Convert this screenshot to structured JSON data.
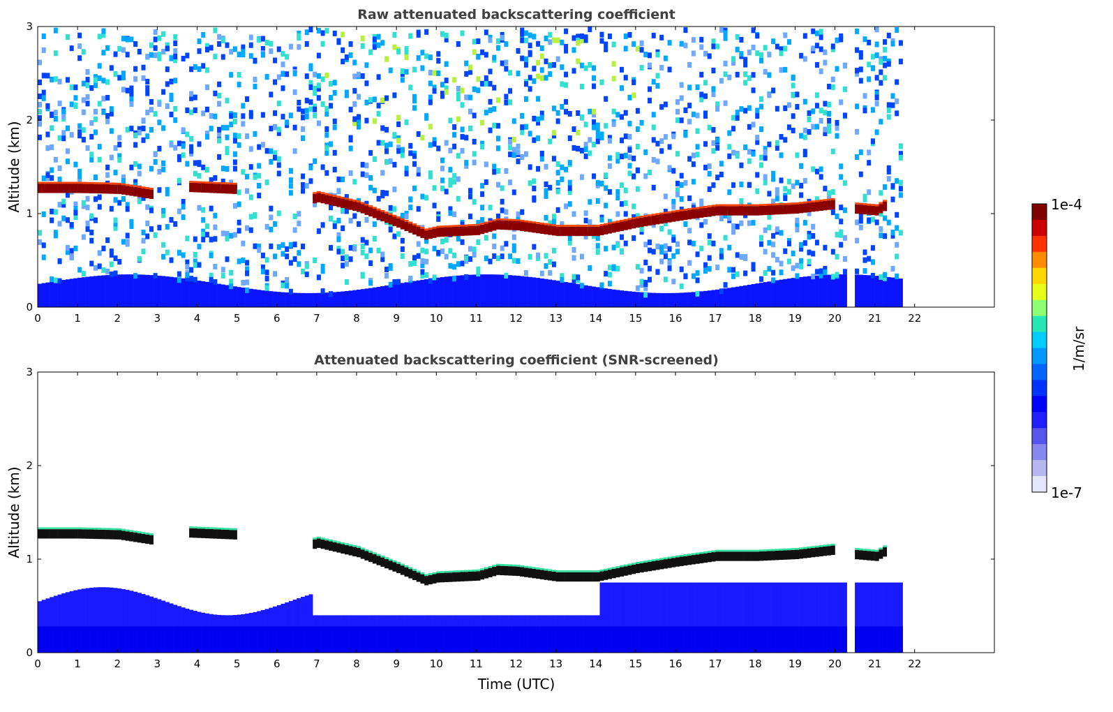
{
  "chart_data": [
    {
      "type": "heatmap",
      "title": "Raw attenuated backscattering coefficient",
      "xlabel": "",
      "ylabel": "Altitude (km)",
      "xlim": [
        0,
        24
      ],
      "ylim": [
        0,
        3
      ],
      "x_ticks": [
        0,
        1,
        2,
        3,
        4,
        5,
        6,
        7,
        8,
        9,
        10,
        11,
        12,
        13,
        14,
        15,
        16,
        17,
        18,
        19,
        20,
        21,
        22
      ],
      "y_ticks": [
        0,
        1,
        2,
        3
      ],
      "data_end_hour": 21.65,
      "gap_hours": [
        20.3,
        20.45
      ],
      "layer_top_km": [
        [
          0,
          1.32
        ],
        [
          1,
          1.32
        ],
        [
          2,
          1.31
        ],
        [
          2.9,
          1.25
        ],
        [
          3.1,
          null
        ],
        [
          3.8,
          1.33
        ],
        [
          4.9,
          1.31
        ],
        [
          5.0,
          null
        ],
        [
          6.8,
          1.2
        ],
        [
          7,
          1.22
        ],
        [
          8,
          1.12
        ],
        [
          9,
          0.95
        ],
        [
          9.7,
          0.82
        ],
        [
          10,
          0.85
        ],
        [
          11,
          0.87
        ],
        [
          11.5,
          0.93
        ],
        [
          12,
          0.92
        ],
        [
          13,
          0.86
        ],
        [
          14,
          0.86
        ],
        [
          15,
          0.95
        ],
        [
          16,
          1.02
        ],
        [
          17,
          1.08
        ],
        [
          18,
          1.08
        ],
        [
          19,
          1.1
        ],
        [
          20,
          1.15
        ],
        [
          20.3,
          null
        ],
        [
          20.45,
          1.1
        ],
        [
          21,
          1.08
        ],
        [
          21.3,
          1.15
        ]
      ]
    },
    {
      "type": "heatmap",
      "title": "Attenuated backscattering coefficient (SNR-screened)",
      "xlabel": "Time (UTC)",
      "ylabel": "Altitude (km)",
      "xlim": [
        0,
        24
      ],
      "ylim": [
        0,
        3
      ],
      "x_ticks": [
        0,
        1,
        2,
        3,
        4,
        5,
        6,
        7,
        8,
        9,
        10,
        11,
        12,
        13,
        14,
        15,
        16,
        17,
        18,
        19,
        20,
        21,
        22
      ],
      "y_ticks": [
        0,
        1,
        2,
        3
      ],
      "data_end_hour": 21.65,
      "gap_hours": [
        20.3,
        20.45
      ]
    }
  ],
  "colorbar": {
    "label": "1/m/sr",
    "max_label": "1e-4",
    "min_label": "1e-7",
    "colors": [
      "#7f0000",
      "#cc0000",
      "#ff3300",
      "#ff8c00",
      "#ffd700",
      "#e6ff1a",
      "#8cff73",
      "#26e6b3",
      "#00ccff",
      "#0099ff",
      "#0066ff",
      "#0033ff",
      "#0000ff",
      "#2020ff",
      "#5555ee",
      "#8888ee",
      "#b8b8f0",
      "#e6e6fa"
    ]
  }
}
